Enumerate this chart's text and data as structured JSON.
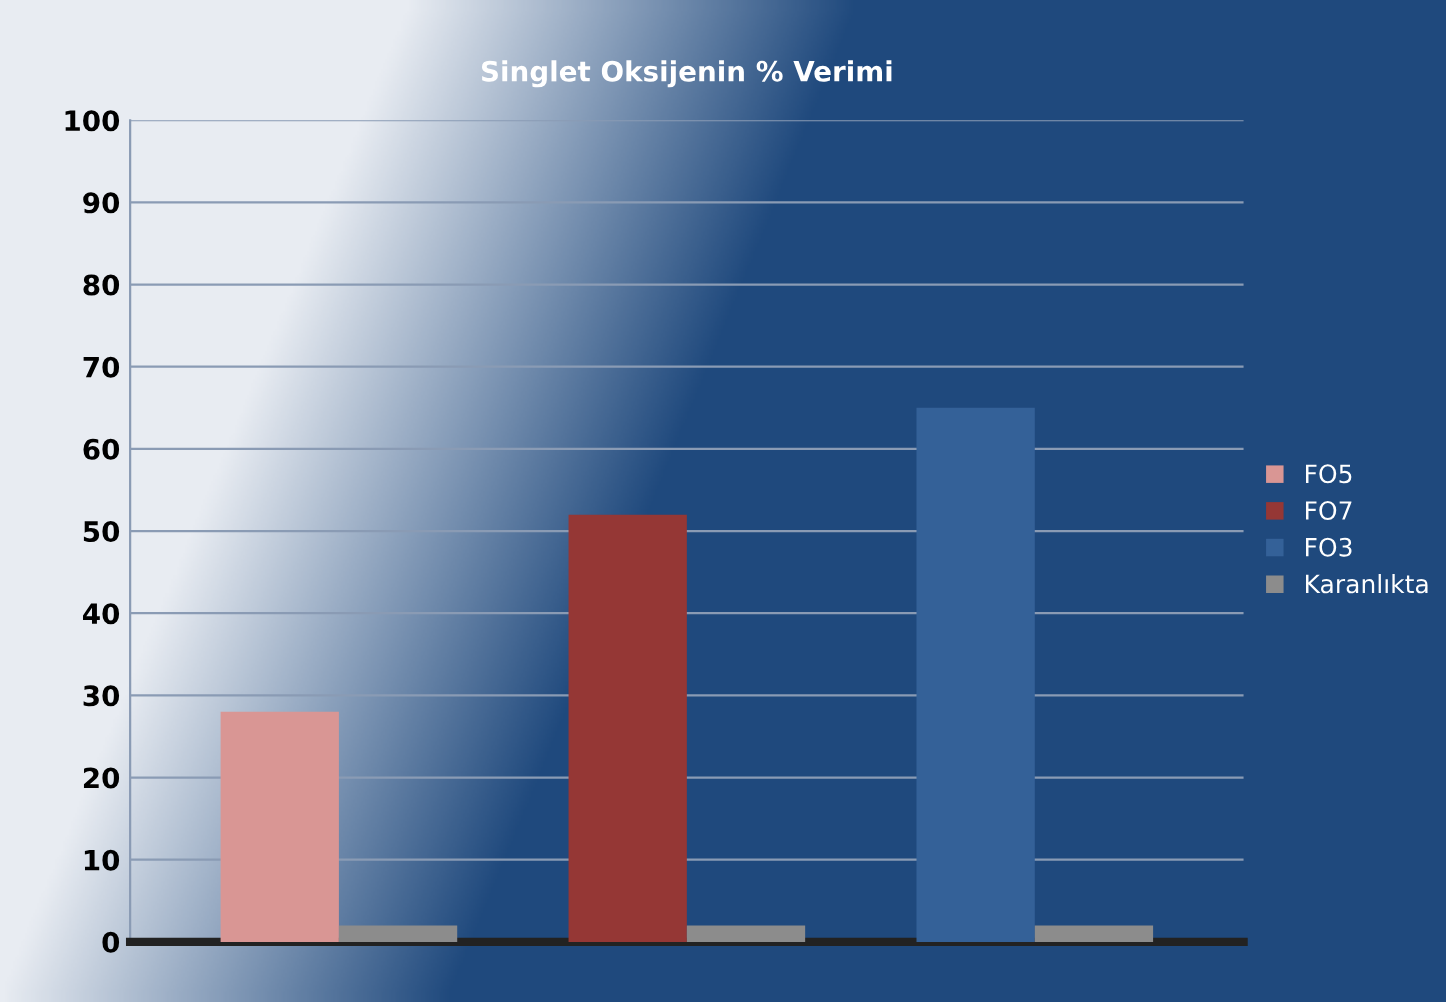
{
  "chart_data": {
    "type": "bar",
    "title": "Singlet Oksijenin % Verimi",
    "categories": [
      null,
      null,
      null
    ],
    "series": [
      {
        "name": "FO5",
        "color": "#d99694",
        "values": [
          28,
          null,
          null
        ]
      },
      {
        "name": "FO7",
        "color": "#953735",
        "values": [
          null,
          52,
          null
        ]
      },
      {
        "name": "FO3",
        "color": "#346198",
        "values": [
          null,
          null,
          65
        ]
      },
      {
        "name": "Karanlıkta",
        "color": "#8c8c8c",
        "values": [
          2,
          2,
          2
        ]
      }
    ],
    "ylim": [
      0,
      100
    ],
    "yticks": [
      0,
      10,
      20,
      30,
      40,
      50,
      60,
      70,
      80,
      90,
      100
    ],
    "grid": "y",
    "legend": "right"
  }
}
